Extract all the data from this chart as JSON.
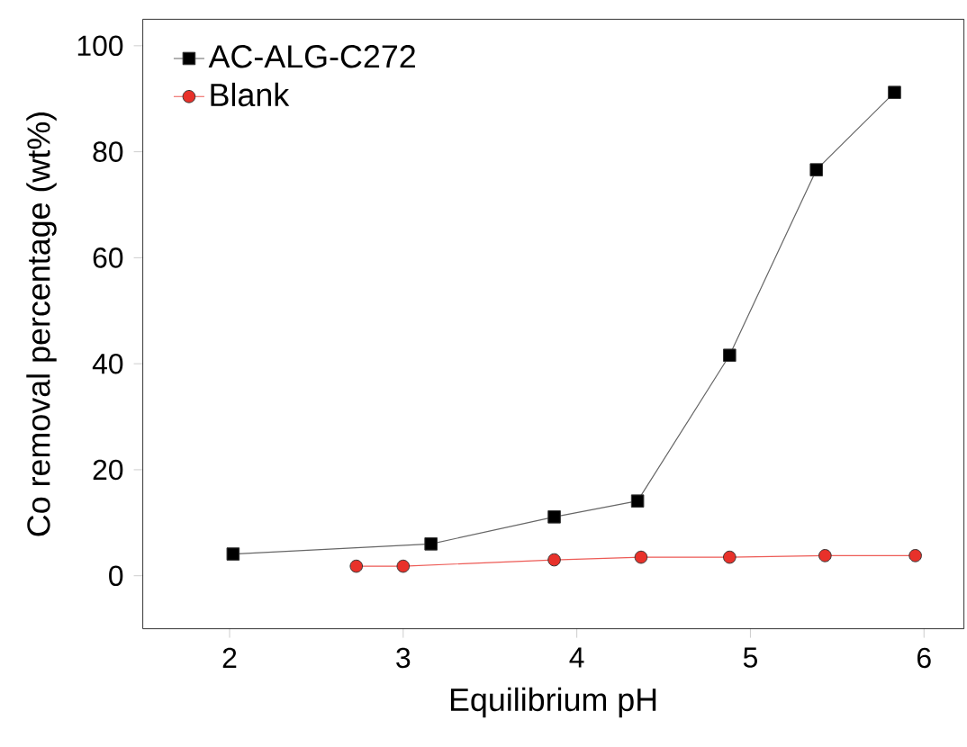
{
  "chart_data": {
    "type": "line",
    "xlabel": "Equilibrium pH",
    "ylabel": "Co removal percentage (wt%)",
    "xlim": [
      1.5,
      6.23
    ],
    "ylim": [
      -10,
      105
    ],
    "xticks": [
      2,
      3,
      4,
      5,
      6
    ],
    "yticks": [
      0,
      20,
      40,
      60,
      80,
      100
    ],
    "grid": false,
    "legend": "top left",
    "line_style": "solid",
    "series": [
      {
        "name": "AC-ALG-C272",
        "color": "#000000",
        "marker": "square",
        "x": [
          2.02,
          3.16,
          3.87,
          4.35,
          4.88,
          5.38,
          5.83
        ],
        "values": [
          4.1,
          6.0,
          11.1,
          14.1,
          41.6,
          76.6,
          91.2
        ]
      },
      {
        "name": "Blank",
        "color": "#e8312a",
        "marker": "circle",
        "x": [
          2.73,
          3.0,
          3.87,
          4.37,
          4.88,
          5.43,
          5.95
        ],
        "values": [
          1.8,
          1.8,
          3.0,
          3.5,
          3.5,
          3.8,
          3.8
        ]
      }
    ]
  }
}
